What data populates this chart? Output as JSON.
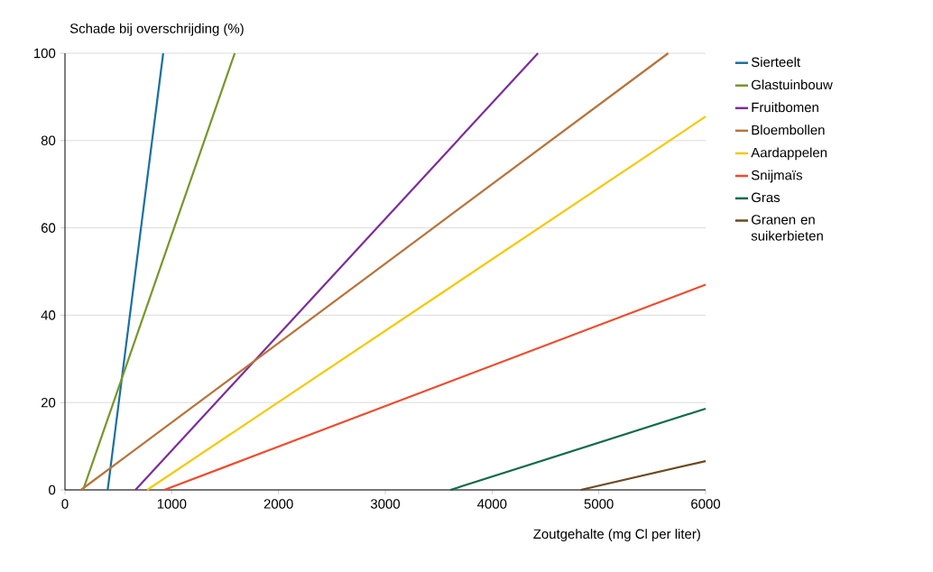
{
  "chart_data": {
    "type": "line",
    "xlabel": "Zoutgehalte (mg Cl per liter)",
    "ylabel": "Schade bij overschrijding (%)",
    "xlim": [
      0,
      6000
    ],
    "xticks": [
      0,
      1000,
      2000,
      3000,
      4000,
      5000,
      6000
    ],
    "ylim": [
      0,
      100
    ],
    "yticks": [
      0,
      20,
      40,
      60,
      80,
      100
    ],
    "grid": "y",
    "legend": "right",
    "marker": "none",
    "line_style": "solid",
    "series": [
      {
        "name": "Sierteelt",
        "color": "#1a6fa3",
        "x": [
          400,
          920
        ],
        "values": [
          0,
          100
        ]
      },
      {
        "name": "Glastuinbouw",
        "color": "#76962a",
        "x": [
          170,
          1590
        ],
        "values": [
          0,
          100
        ]
      },
      {
        "name": "Fruitbomen",
        "color": "#7b2d9a",
        "x": [
          660,
          4430
        ],
        "values": [
          0,
          100
        ]
      },
      {
        "name": "Bloembollen",
        "color": "#b8733a",
        "x": [
          150,
          5650
        ],
        "values": [
          0,
          100
        ]
      },
      {
        "name": "Aardappelen",
        "color": "#f5c800",
        "x": [
          770,
          6000
        ],
        "values": [
          0,
          85.5
        ]
      },
      {
        "name": "Snijmaïs",
        "color": "#ee4b2b",
        "x": [
          930,
          6000
        ],
        "values": [
          0,
          47
        ]
      },
      {
        "name": "Gras",
        "color": "#0e6b48",
        "x": [
          3610,
          6000
        ],
        "values": [
          0,
          18.6
        ]
      },
      {
        "name": "Granen en suikerbieten",
        "color": "#6b4a1e",
        "x": [
          4830,
          6000
        ],
        "values": [
          0,
          6.6
        ]
      }
    ]
  }
}
